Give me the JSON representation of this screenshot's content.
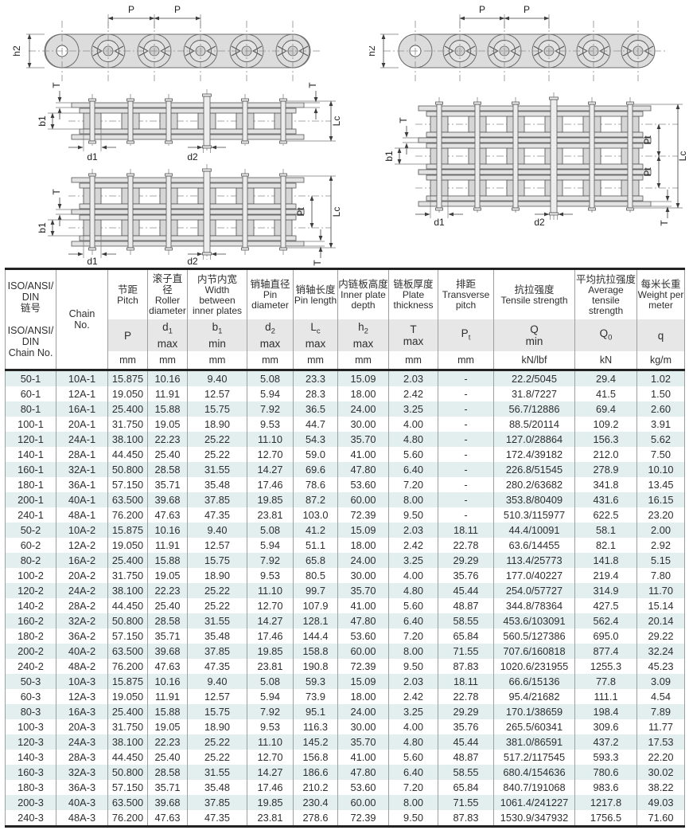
{
  "diagrams": {
    "labels": {
      "pitch": "P",
      "inner_plate_depth": "h2",
      "plate_thickness": "T",
      "inner_width": "b1",
      "pin_length": "Lc",
      "roller_diameter": "d1",
      "pin_diameter": "d2",
      "transverse_pitch": "Pt"
    }
  },
  "table": {
    "colors": {
      "alt_row": "#e3efee",
      "header_band": "#e7e7e7",
      "grid_line": "#99a0a0",
      "heavy_line": "#222222"
    },
    "iso_header": "ISO/ANSI/\nDIN\n链号\n\nISO/ANSI/\nDIN\nChain No.",
    "chain_no_header": "Chain\nNo.",
    "columns": [
      {
        "name_cn": "节距",
        "name_en": "Pitch",
        "symbol": "P",
        "constraint": "",
        "unit": "mm"
      },
      {
        "name_cn": "滚子直径",
        "name_en": "Roller diameter",
        "symbol": "d1",
        "constraint": "max",
        "unit": "mm"
      },
      {
        "name_cn": "内节内宽",
        "name_en": "Width between inner plates",
        "symbol": "b1",
        "constraint": "min",
        "unit": "mm"
      },
      {
        "name_cn": "销轴直径",
        "name_en": "Pin diameter",
        "symbol": "d2",
        "constraint": "max",
        "unit": "mm"
      },
      {
        "name_cn": "销轴长度",
        "name_en": "Pin length",
        "symbol": "Lc",
        "constraint": "max",
        "unit": "mm"
      },
      {
        "name_cn": "内链板高度",
        "name_en": "Inner plate depth",
        "symbol": "h2",
        "constraint": "max",
        "unit": "mm"
      },
      {
        "name_cn": "链板厚度",
        "name_en": "Plate thickness",
        "symbol": "T",
        "constraint": "max",
        "unit": "mm"
      },
      {
        "name_cn": "排距",
        "name_en": "Transverse pitch",
        "symbol": "Pt",
        "constraint": "",
        "unit": "mm"
      },
      {
        "name_cn": "抗拉强度",
        "name_en": "Tensile strength",
        "symbol": "Q",
        "constraint": "min",
        "unit": "kN/lbf"
      },
      {
        "name_cn": "平均抗拉强度",
        "name_en": "Average tensile strength",
        "symbol": "Q0",
        "constraint": "",
        "unit": "kN"
      },
      {
        "name_cn": "每米长重",
        "name_en": "Weight per meter",
        "symbol": "q",
        "constraint": "",
        "unit": "kg/m"
      }
    ],
    "rows": [
      [
        "50-1",
        "10A-1",
        "15.875",
        "10.16",
        "9.40",
        "5.08",
        "23.3",
        "15.09",
        "2.03",
        "-",
        "22.2/5045",
        "29.4",
        "1.02"
      ],
      [
        "60-1",
        "12A-1",
        "19.050",
        "11.91",
        "12.57",
        "5.94",
        "28.3",
        "18.00",
        "2.42",
        "-",
        "31.8/7227",
        "41.5",
        "1.50"
      ],
      [
        "80-1",
        "16A-1",
        "25.400",
        "15.88",
        "15.75",
        "7.92",
        "36.5",
        "24.00",
        "3.25",
        "-",
        "56.7/12886",
        "69.4",
        "2.60"
      ],
      [
        "100-1",
        "20A-1",
        "31.750",
        "19.05",
        "18.90",
        "9.53",
        "44.7",
        "30.00",
        "4.00",
        "-",
        "88.5/20114",
        "109.2",
        "3.91"
      ],
      [
        "120-1",
        "24A-1",
        "38.100",
        "22.23",
        "25.22",
        "11.10",
        "54.3",
        "35.70",
        "4.80",
        "-",
        "127.0/28864",
        "156.3",
        "5.62"
      ],
      [
        "140-1",
        "28A-1",
        "44.450",
        "25.40",
        "25.22",
        "12.70",
        "59.0",
        "41.00",
        "5.60",
        "-",
        "172.4/39182",
        "212.0",
        "7.50"
      ],
      [
        "160-1",
        "32A-1",
        "50.800",
        "28.58",
        "31.55",
        "14.27",
        "69.6",
        "47.80",
        "6.40",
        "-",
        "226.8/51545",
        "278.9",
        "10.10"
      ],
      [
        "180-1",
        "36A-1",
        "57.150",
        "35.71",
        "35.48",
        "17.46",
        "78.6",
        "53.60",
        "7.20",
        "-",
        "280.2/63682",
        "341.8",
        "13.45"
      ],
      [
        "200-1",
        "40A-1",
        "63.500",
        "39.68",
        "37.85",
        "19.85",
        "87.2",
        "60.00",
        "8.00",
        "-",
        "353.8/80409",
        "431.6",
        "16.15"
      ],
      [
        "240-1",
        "48A-1",
        "76.200",
        "47.63",
        "47.35",
        "23.81",
        "103.0",
        "72.39",
        "9.50",
        "-",
        "510.3/115977",
        "622.5",
        "23.20"
      ],
      [
        "50-2",
        "10A-2",
        "15.875",
        "10.16",
        "9.40",
        "5.08",
        "41.2",
        "15.09",
        "2.03",
        "18.11",
        "44.4/10091",
        "58.1",
        "2.00"
      ],
      [
        "60-2",
        "12A-2",
        "19.050",
        "11.91",
        "12.57",
        "5.94",
        "51.1",
        "18.00",
        "2.42",
        "22.78",
        "63.6/14455",
        "82.1",
        "2.92"
      ],
      [
        "80-2",
        "16A-2",
        "25.400",
        "15.88",
        "15.75",
        "7.92",
        "65.8",
        "24.00",
        "3.25",
        "29.29",
        "113.4/25773",
        "141.8",
        "5.15"
      ],
      [
        "100-2",
        "20A-2",
        "31.750",
        "19.05",
        "18.90",
        "9.53",
        "80.5",
        "30.00",
        "4.00",
        "35.76",
        "177.0/40227",
        "219.4",
        "7.80"
      ],
      [
        "120-2",
        "24A-2",
        "38.100",
        "22.23",
        "25.22",
        "11.10",
        "99.7",
        "35.70",
        "4.80",
        "45.44",
        "254.0/57727",
        "314.9",
        "11.70"
      ],
      [
        "140-2",
        "28A-2",
        "44.450",
        "25.40",
        "25.22",
        "12.70",
        "107.9",
        "41.00",
        "5.60",
        "48.87",
        "344.8/78364",
        "427.5",
        "15.14"
      ],
      [
        "160-2",
        "32A-2",
        "50.800",
        "28.58",
        "31.55",
        "14.27",
        "128.1",
        "47.80",
        "6.40",
        "58.55",
        "453.6/103091",
        "562.4",
        "20.14"
      ],
      [
        "180-2",
        "36A-2",
        "57.150",
        "35.71",
        "35.48",
        "17.46",
        "144.4",
        "53.60",
        "7.20",
        "65.84",
        "560.5/127386",
        "695.0",
        "29.22"
      ],
      [
        "200-2",
        "40A-2",
        "63.500",
        "39.68",
        "37.85",
        "19.85",
        "158.8",
        "60.00",
        "8.00",
        "71.55",
        "707.6/160818",
        "877.4",
        "32.24"
      ],
      [
        "240-2",
        "48A-2",
        "76.200",
        "47.63",
        "47.35",
        "23.81",
        "190.8",
        "72.39",
        "9.50",
        "87.83",
        "1020.6/231955",
        "1255.3",
        "45.23"
      ],
      [
        "50-3",
        "10A-3",
        "15.875",
        "10.16",
        "9.40",
        "5.08",
        "59.3",
        "15.09",
        "2.03",
        "18.11",
        "66.6/15136",
        "77.8",
        "3.09"
      ],
      [
        "60-3",
        "12A-3",
        "19.050",
        "11.91",
        "12.57",
        "5.94",
        "73.9",
        "18.00",
        "2.42",
        "22.78",
        "95.4/21682",
        "111.1",
        "4.54"
      ],
      [
        "80-3",
        "16A-3",
        "25.400",
        "15.88",
        "15.75",
        "7.92",
        "95.1",
        "24.00",
        "3.25",
        "29.29",
        "170.1/38659",
        "198.4",
        "7.89"
      ],
      [
        "100-3",
        "20A-3",
        "31.750",
        "19.05",
        "18.90",
        "9.53",
        "116.3",
        "30.00",
        "4.00",
        "35.76",
        "265.5/60341",
        "309.6",
        "11.77"
      ],
      [
        "120-3",
        "24A-3",
        "38.100",
        "22.23",
        "25.22",
        "11.10",
        "145.2",
        "35.70",
        "4.80",
        "45.44",
        "381.0/86591",
        "437.2",
        "17.53"
      ],
      [
        "140-3",
        "28A-3",
        "44.450",
        "25.40",
        "25.22",
        "12.70",
        "156.8",
        "41.00",
        "5.60",
        "48.87",
        "517.2/117545",
        "593.3",
        "22.20"
      ],
      [
        "160-3",
        "32A-3",
        "50.800",
        "28.58",
        "31.55",
        "14.27",
        "186.6",
        "47.80",
        "6.40",
        "58.55",
        "680.4/154636",
        "780.6",
        "30.02"
      ],
      [
        "180-3",
        "36A-3",
        "57.150",
        "35.71",
        "35.48",
        "17.46",
        "210.2",
        "53.60",
        "7.20",
        "65.84",
        "840.7/191068",
        "983.6",
        "38.22"
      ],
      [
        "200-3",
        "40A-3",
        "63.500",
        "39.68",
        "37.85",
        "19.85",
        "230.4",
        "60.00",
        "8.00",
        "71.55",
        "1061.4/241227",
        "1217.8",
        "49.03"
      ],
      [
        "240-3",
        "48A-3",
        "76.200",
        "47.63",
        "47.35",
        "23.81",
        "278.6",
        "72.39",
        "9.50",
        "87.83",
        "1530.9/347932",
        "1756.5",
        "71.60"
      ]
    ]
  }
}
